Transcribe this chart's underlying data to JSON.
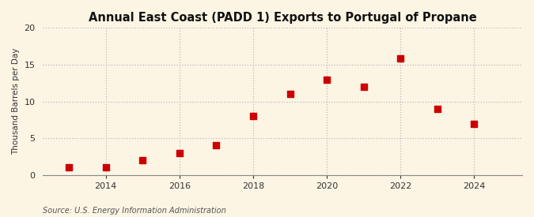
{
  "title": "Annual East Coast (PADD 1) Exports to Portugal of Propane",
  "ylabel": "Thousand Barrels per Day",
  "source": "Source: U.S. Energy Information Administration",
  "years": [
    2013,
    2014,
    2015,
    2016,
    2017,
    2018,
    2019,
    2020,
    2021,
    2022,
    2023,
    2024
  ],
  "values": [
    1.0,
    1.0,
    2.0,
    3.0,
    4.0,
    8.0,
    11.0,
    13.0,
    12.0,
    15.9,
    9.0,
    6.9
  ],
  "marker_color": "#cc0000",
  "marker_size": 28,
  "background_color": "#fdf5e4",
  "plot_background_color": "#fdf5e4",
  "grid_color": "#bbbbbb",
  "ylim": [
    0,
    20
  ],
  "yticks": [
    0,
    5,
    10,
    15,
    20
  ],
  "xticks": [
    2014,
    2016,
    2018,
    2020,
    2022,
    2024
  ],
  "xlim": [
    2012.3,
    2025.3
  ],
  "title_fontsize": 10.5,
  "ylabel_fontsize": 7.5,
  "tick_fontsize": 8,
  "source_fontsize": 7
}
